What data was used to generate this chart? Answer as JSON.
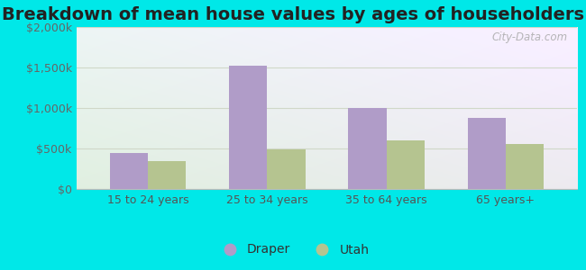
{
  "title": "Breakdown of mean house values by ages of householders",
  "categories": [
    "15 to 24 years",
    "25 to 34 years",
    "35 to 64 years",
    "65 years+"
  ],
  "draper_values": [
    450000,
    1525000,
    1000000,
    875000
  ],
  "utah_values": [
    350000,
    490000,
    600000,
    560000
  ],
  "draper_color": "#b09cc8",
  "utah_color": "#b5c490",
  "ylim": [
    0,
    2000000
  ],
  "yticks": [
    0,
    500000,
    1000000,
    1500000,
    2000000
  ],
  "ytick_labels": [
    "$0",
    "$500k",
    "$1,000k",
    "$1,500k",
    "$2,000k"
  ],
  "legend_labels": [
    "Draper",
    "Utah"
  ],
  "background_outer": "#00e8e8",
  "grid_color": "#d0d8c8",
  "title_fontsize": 14,
  "tick_fontsize": 9,
  "bar_width": 0.32
}
